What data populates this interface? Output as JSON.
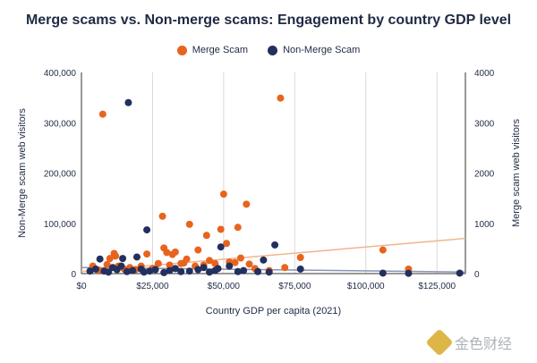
{
  "chart_data": {
    "type": "scatter",
    "title": "Merge scams vs. Non-merge scams: Engagement by country GDP level",
    "xlabel": "Country GDP per capita (2021)",
    "ylabel_left": "Non-Merge scam web visitors",
    "ylabel_right": "Merge scam web visitors",
    "xlim": [
      0,
      135000
    ],
    "ylim_left": [
      0,
      400000
    ],
    "ylim_right": [
      0,
      4000
    ],
    "x_ticks": [
      0,
      25000,
      50000,
      75000,
      100000,
      125000
    ],
    "x_tick_labels": [
      "$0",
      "$25,000",
      "$50,000",
      "$75,000",
      "$100,000",
      "$125,000"
    ],
    "y_left_ticks": [
      0,
      100000,
      200000,
      300000,
      400000
    ],
    "y_left_tick_labels": [
      "0",
      "100,000",
      "200,000",
      "300,000",
      "400,000"
    ],
    "y_right_ticks": [
      0,
      1000,
      2000,
      3000,
      4000
    ],
    "y_right_tick_labels": [
      "0",
      "1000",
      "2000",
      "3000",
      "4000"
    ],
    "grid": "vertical",
    "legend_position": "top",
    "series": [
      {
        "name": "Merge Scam",
        "color": "#e8641e",
        "axis": "right",
        "points": [
          [
            7500,
            3170
          ],
          [
            4000,
            150
          ],
          [
            6000,
            70
          ],
          [
            9000,
            180
          ],
          [
            10000,
            300
          ],
          [
            11500,
            400
          ],
          [
            12000,
            350
          ],
          [
            13000,
            150
          ],
          [
            15000,
            90
          ],
          [
            17000,
            120
          ],
          [
            19000,
            80
          ],
          [
            21000,
            150
          ],
          [
            23000,
            390
          ],
          [
            25000,
            100
          ],
          [
            27000,
            200
          ],
          [
            28500,
            1140
          ],
          [
            29000,
            510
          ],
          [
            30000,
            420
          ],
          [
            31000,
            170
          ],
          [
            32000,
            380
          ],
          [
            33000,
            430
          ],
          [
            35000,
            200
          ],
          [
            36000,
            210
          ],
          [
            37000,
            290
          ],
          [
            38000,
            980
          ],
          [
            40000,
            150
          ],
          [
            41000,
            470
          ],
          [
            43000,
            170
          ],
          [
            44000,
            760
          ],
          [
            45000,
            260
          ],
          [
            47000,
            200
          ],
          [
            49000,
            880
          ],
          [
            50000,
            1580
          ],
          [
            51000,
            600
          ],
          [
            52000,
            230
          ],
          [
            54000,
            220
          ],
          [
            55000,
            920
          ],
          [
            56000,
            310
          ],
          [
            58000,
            1380
          ],
          [
            59000,
            190
          ],
          [
            61000,
            100
          ],
          [
            66000,
            60
          ],
          [
            70000,
            3490
          ],
          [
            71500,
            120
          ],
          [
            77000,
            320
          ],
          [
            106000,
            470
          ],
          [
            115000,
            90
          ]
        ],
        "trend": [
          [
            0,
            40
          ],
          [
            135000,
            700
          ]
        ]
      },
      {
        "name": "Non-Merge Scam",
        "color": "#23305e",
        "axis": "left",
        "points": [
          [
            16500,
            340000
          ],
          [
            23000,
            87000
          ],
          [
            49000,
            53000
          ],
          [
            68000,
            57000
          ],
          [
            3000,
            5000
          ],
          [
            5000,
            9000
          ],
          [
            6500,
            29000
          ],
          [
            8000,
            5000
          ],
          [
            9500,
            3000
          ],
          [
            11000,
            12000
          ],
          [
            12500,
            8000
          ],
          [
            14000,
            15000
          ],
          [
            14500,
            30000
          ],
          [
            16000,
            4000
          ],
          [
            18000,
            6000
          ],
          [
            19500,
            33000
          ],
          [
            21000,
            9000
          ],
          [
            22000,
            3000
          ],
          [
            24000,
            5000
          ],
          [
            26000,
            8000
          ],
          [
            29000,
            2000
          ],
          [
            31000,
            6000
          ],
          [
            33000,
            10000
          ],
          [
            35000,
            4000
          ],
          [
            38000,
            5000
          ],
          [
            41000,
            8000
          ],
          [
            43000,
            12000
          ],
          [
            45000,
            3000
          ],
          [
            47000,
            6000
          ],
          [
            48000,
            10000
          ],
          [
            52000,
            15000
          ],
          [
            55000,
            4000
          ],
          [
            57000,
            6000
          ],
          [
            62000,
            4000
          ],
          [
            64000,
            27000
          ],
          [
            66000,
            3000
          ],
          [
            77000,
            9000
          ],
          [
            106000,
            1000
          ],
          [
            115000,
            500
          ],
          [
            133000,
            1000
          ]
        ],
        "trend": [
          [
            0,
            12000
          ],
          [
            135000,
            3000
          ]
        ]
      }
    ]
  },
  "watermark": "金色财经"
}
